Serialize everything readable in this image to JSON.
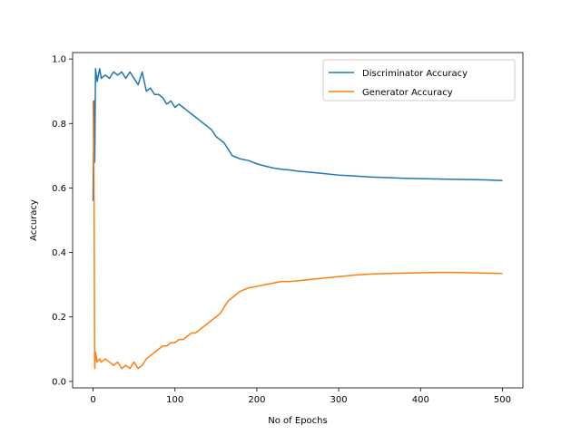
{
  "chart_data": {
    "type": "line",
    "xlabel": "No of Epochs",
    "ylabel": "Accuracy",
    "xlim": [
      -25,
      525
    ],
    "ylim": [
      -0.02,
      1.02
    ],
    "xticks": [
      0,
      100,
      200,
      300,
      400,
      500
    ],
    "yticks": [
      0.0,
      0.2,
      0.4,
      0.6,
      0.8,
      1.0
    ],
    "xtick_labels": [
      "0",
      "100",
      "200",
      "300",
      "400",
      "500"
    ],
    "ytick_labels": [
      "0.0",
      "0.2",
      "0.4",
      "0.6",
      "0.8",
      "1.0"
    ],
    "grid": false,
    "legend_position": "top-right",
    "series": [
      {
        "name": "Discriminator Accuracy",
        "color": "#1f77b4",
        "x": [
          0,
          1,
          2,
          3,
          5,
          8,
          10,
          15,
          20,
          25,
          30,
          35,
          40,
          45,
          50,
          55,
          60,
          65,
          70,
          75,
          80,
          85,
          90,
          95,
          100,
          105,
          110,
          115,
          120,
          125,
          130,
          135,
          140,
          145,
          150,
          155,
          160,
          165,
          170,
          175,
          180,
          190,
          200,
          210,
          220,
          230,
          240,
          250,
          260,
          280,
          300,
          320,
          340,
          360,
          380,
          400,
          420,
          440,
          460,
          480,
          500
        ],
        "y": [
          0.56,
          0.87,
          0.68,
          0.97,
          0.93,
          0.97,
          0.94,
          0.95,
          0.94,
          0.96,
          0.95,
          0.96,
          0.94,
          0.96,
          0.94,
          0.92,
          0.96,
          0.9,
          0.91,
          0.89,
          0.89,
          0.88,
          0.86,
          0.87,
          0.85,
          0.86,
          0.85,
          0.84,
          0.83,
          0.82,
          0.81,
          0.8,
          0.79,
          0.78,
          0.76,
          0.75,
          0.74,
          0.72,
          0.7,
          0.695,
          0.69,
          0.685,
          0.675,
          0.668,
          0.662,
          0.658,
          0.656,
          0.652,
          0.65,
          0.645,
          0.64,
          0.637,
          0.634,
          0.632,
          0.63,
          0.629,
          0.628,
          0.627,
          0.626,
          0.625,
          0.623
        ]
      },
      {
        "name": "Generator Accuracy",
        "color": "#ff7f0e",
        "x": [
          0,
          1,
          2,
          3,
          5,
          8,
          10,
          15,
          20,
          25,
          30,
          35,
          40,
          45,
          50,
          55,
          60,
          65,
          70,
          75,
          80,
          85,
          90,
          95,
          100,
          105,
          110,
          115,
          120,
          125,
          130,
          135,
          140,
          145,
          150,
          155,
          160,
          165,
          170,
          175,
          180,
          190,
          200,
          210,
          220,
          230,
          240,
          250,
          260,
          280,
          300,
          320,
          340,
          360,
          380,
          400,
          420,
          440,
          460,
          480,
          500
        ],
        "y": [
          0.87,
          0.67,
          0.04,
          0.09,
          0.06,
          0.07,
          0.06,
          0.07,
          0.06,
          0.05,
          0.06,
          0.04,
          0.05,
          0.04,
          0.06,
          0.04,
          0.05,
          0.07,
          0.08,
          0.09,
          0.1,
          0.11,
          0.11,
          0.12,
          0.12,
          0.13,
          0.13,
          0.14,
          0.15,
          0.15,
          0.16,
          0.17,
          0.18,
          0.19,
          0.2,
          0.21,
          0.23,
          0.25,
          0.26,
          0.27,
          0.28,
          0.29,
          0.295,
          0.3,
          0.305,
          0.31,
          0.31,
          0.312,
          0.315,
          0.32,
          0.325,
          0.33,
          0.333,
          0.335,
          0.336,
          0.337,
          0.338,
          0.338,
          0.337,
          0.336,
          0.335
        ]
      }
    ]
  }
}
